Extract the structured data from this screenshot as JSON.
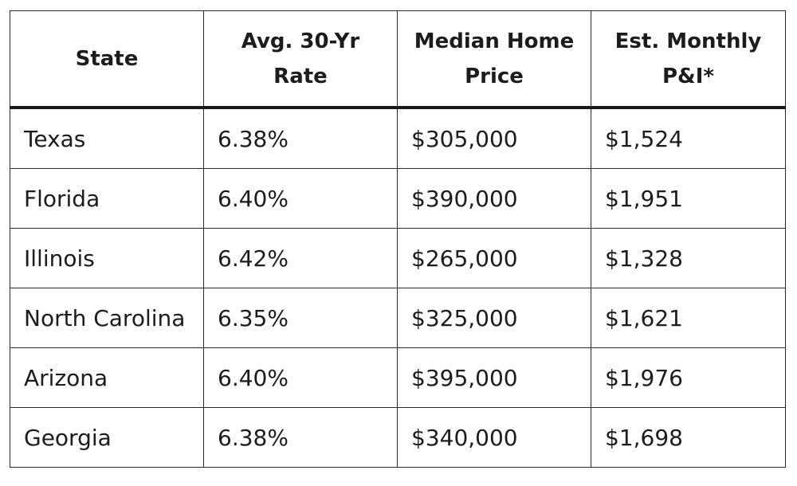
{
  "table": {
    "columns": [
      "State",
      "Avg. 30-Yr\nRate",
      "Median Home\nPrice",
      "Est. Monthly\nP&I*"
    ],
    "rows": [
      {
        "state": "Texas",
        "rate": "6.38%",
        "price": "$305,000",
        "payment": "$1,524"
      },
      {
        "state": "Florida",
        "rate": "6.40%",
        "price": "$390,000",
        "payment": "$1,951"
      },
      {
        "state": "Illinois",
        "rate": "6.42%",
        "price": "$265,000",
        "payment": "$1,328"
      },
      {
        "state": "North Carolina",
        "rate": "6.35%",
        "price": "$325,000",
        "payment": "$1,621"
      },
      {
        "state": "Arizona",
        "rate": "6.40%",
        "price": "$395,000",
        "payment": "$1,976"
      },
      {
        "state": "Georgia",
        "rate": "6.38%",
        "price": "$340,000",
        "payment": "$1,698"
      }
    ]
  }
}
